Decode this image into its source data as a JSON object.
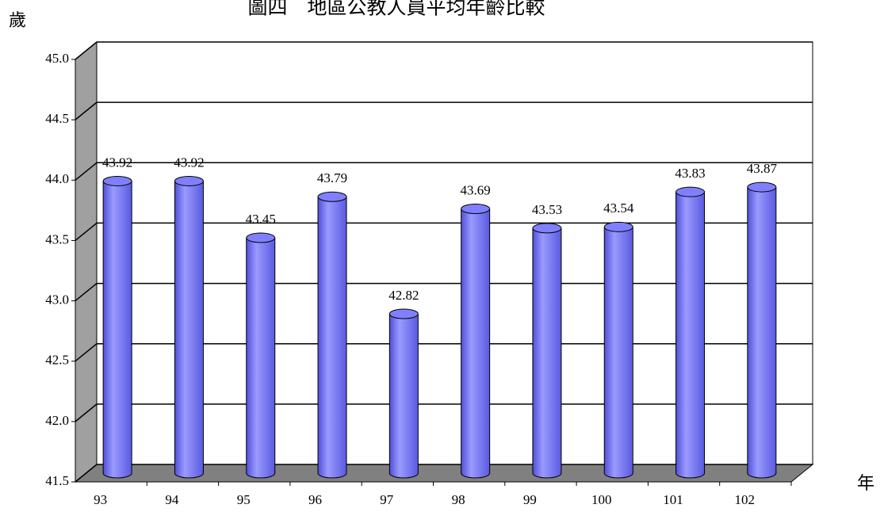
{
  "chart_data": {
    "type": "bar",
    "title": "圖四　地區公教人員平均年齡比較",
    "y_label": "歲",
    "x_label": "年",
    "categories": [
      "93",
      "94",
      "95",
      "96",
      "97",
      "98",
      "99",
      "100",
      "101",
      "102"
    ],
    "values": [
      43.92,
      43.92,
      43.45,
      43.79,
      42.82,
      43.69,
      43.53,
      43.54,
      43.83,
      43.87
    ],
    "color": "#8080ff",
    "ylim": [
      41.5,
      45.0
    ],
    "yticks": [
      {
        "value": 41.5,
        "label": "41.5"
      },
      {
        "value": 42.0,
        "label": "42.0"
      },
      {
        "value": 42.5,
        "label": "42.5"
      },
      {
        "value": 43.0,
        "label": "43.0"
      },
      {
        "value": 43.5,
        "label": "43.5"
      },
      {
        "value": 44.0,
        "label": "44.0"
      },
      {
        "value": 44.5,
        "label": "44.5"
      },
      {
        "value": 45.0,
        "label": "45.0"
      }
    ],
    "grid": true
  }
}
